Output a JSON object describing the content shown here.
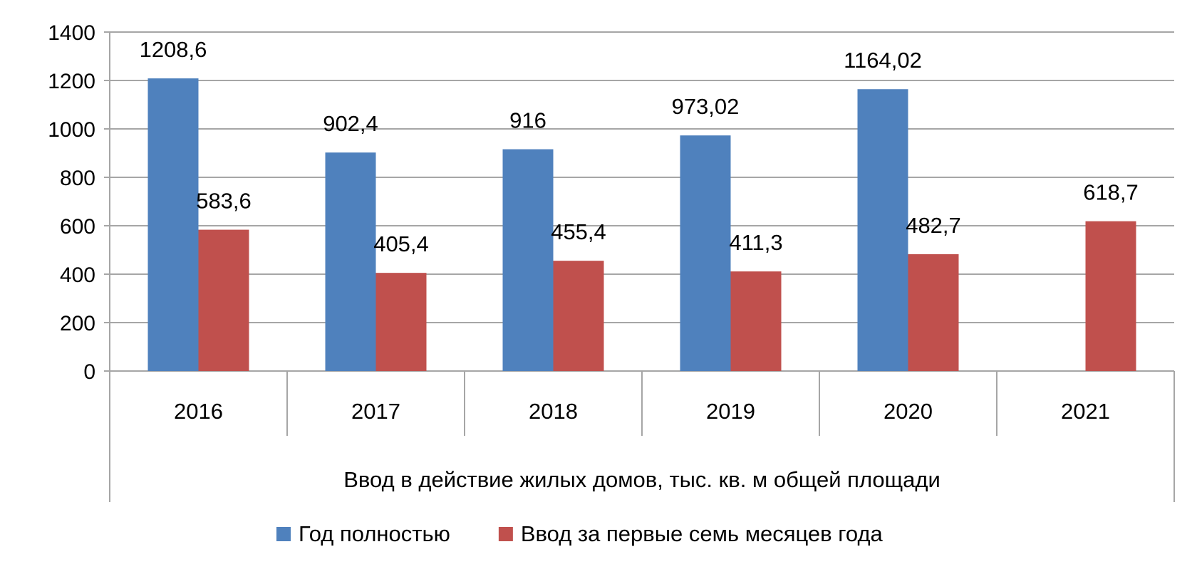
{
  "chart_data": {
    "type": "bar",
    "categories": [
      "2016",
      "2017",
      "2018",
      "2019",
      "2020",
      "2021"
    ],
    "group_label": "Ввод в действие жилых домов, тыс. кв. м общей площади",
    "ylim": [
      0,
      1400
    ],
    "yticks": [
      0,
      200,
      400,
      600,
      800,
      1000,
      1200,
      1400
    ],
    "grid": true,
    "legend_position": "bottom",
    "series": [
      {
        "name": "Год полностью",
        "color": "#4f81bd",
        "values": [
          1208.6,
          902.4,
          916,
          973.02,
          1164.02,
          null
        ],
        "labels": [
          "1208,6",
          "902,4",
          "916",
          "973,02",
          "1164,02",
          ""
        ]
      },
      {
        "name": "Ввод за первые семь месяцев года",
        "color": "#c0504d",
        "values": [
          583.6,
          405.4,
          455.4,
          411.3,
          482.7,
          618.7
        ],
        "labels": [
          "583,6",
          "405,4",
          "455,4",
          "411,3",
          "482,7",
          "618,7"
        ]
      }
    ]
  }
}
